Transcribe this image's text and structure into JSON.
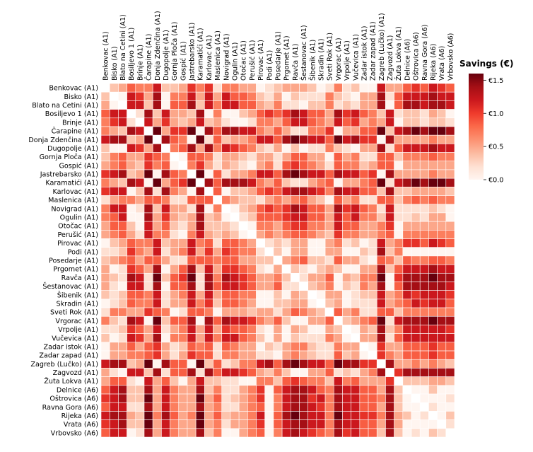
{
  "chart_data": {
    "type": "heatmap",
    "title": "",
    "colorbar_label": "Savings (€)",
    "colorbar_ticks": [
      {
        "value": 1.5,
        "label": "€1.5"
      },
      {
        "value": 1.0,
        "label": "€1.0"
      },
      {
        "value": 0.5,
        "label": "€0.5"
      },
      {
        "value": 0.0,
        "label": "€0.0"
      }
    ],
    "vmin": 0,
    "vmax": 1.6,
    "colormap": "Reds",
    "symmetric": true,
    "diagonal": "blank",
    "labels": [
      "Benkovac (A1)",
      "Bisko (A1)",
      "Blato na Cetini (A1)",
      "Bosiljevo 1 (A1)",
      "Brinje (A1)",
      "Čarapine (A1)",
      "Donja Zdenčina (A1)",
      "Dugopolje (A1)",
      "Gornja Ploča (A1)",
      "Gospić (A1)",
      "Jastrebarsko (A1)",
      "Karamatići (A1)",
      "Karlovac (A1)",
      "Maslenica (A1)",
      "Novigrad (A1)",
      "Ogulin (A1)",
      "Otočac (A1)",
      "Perušić (A1)",
      "Pirovac (A1)",
      "Podi (A1)",
      "Posedarje (A1)",
      "Prgomet (A1)",
      "Ravča (A1)",
      "Šestanovac (A1)",
      "Šibenik (A1)",
      "Skradin (A1)",
      "Sveti Rok (A1)",
      "Vrgorac (A1)",
      "Vrpolje (A1)",
      "Vučevica (A1)",
      "Zadar istok (A1)",
      "Zadar zapad (A1)",
      "Zagreb (Lučko) (A1)",
      "Zagvozd (A1)",
      "Žuta Lokva (A1)",
      "Delnice (A6)",
      "Oštrovica (A6)",
      "Ravna Gora (A6)",
      "Rijeka (A6)",
      "Vrata (A6)",
      "Vrbovsko (A6)"
    ],
    "upper_triangle": [
      [
        0.35,
        0.5,
        0.85,
        0.7,
        0.7,
        1.2,
        0.35,
        0.35,
        0.5,
        1.05,
        0.7,
        1.05,
        0.2,
        0.7,
        0.7,
        0.5,
        0.5,
        0,
        0.2,
        0.35,
        0.5,
        0.5,
        0.5,
        0.35,
        0,
        0.2,
        0.7,
        0.2,
        0.35,
        0,
        0,
        1.2,
        0.5,
        0.5,
        0.85,
        1.05,
        0.85,
        1.2,
        1.05,
        0.85
      ],
      [
        0,
        1.2,
        1.05,
        0.5,
        1.4,
        0,
        0.7,
        0.7,
        1.2,
        0.5,
        1.2,
        0.5,
        1.2,
        0.85,
        0.85,
        0.7,
        0.35,
        0.2,
        0.5,
        0,
        0.35,
        0.2,
        0.2,
        0.2,
        0.7,
        0.35,
        0.2,
        0,
        0.5,
        0.5,
        1.4,
        0.2,
        0.85,
        1.2,
        1.2,
        1.2,
        1.4,
        1.2,
        1.2
      ],
      [
        1.2,
        1.2,
        0.35,
        1.4,
        0,
        0.85,
        0.85,
        1.4,
        0.35,
        1.2,
        0.7,
        1.2,
        1.2,
        0.85,
        0.85,
        0.5,
        0.35,
        0.7,
        0.2,
        0.2,
        0,
        0.35,
        0.35,
        0.7,
        0.2,
        0.35,
        0.2,
        0.5,
        0.5,
        1.4,
        0,
        0.85,
        1.4,
        1.4,
        1.2,
        1.4,
        1.4,
        1.2
      ],
      [
        0.2,
        1.4,
        0.35,
        1.2,
        0.5,
        0.5,
        0.35,
        1.4,
        0,
        0.7,
        0,
        0,
        0.35,
        0.5,
        0.85,
        1.05,
        0.85,
        1.05,
        1.4,
        1.2,
        0.85,
        0.85,
        0.5,
        1.4,
        1.05,
        1.2,
        0.85,
        0.7,
        0.35,
        1.2,
        0.2,
        0.35,
        0.35,
        0.2,
        0.5,
        0.35,
        0
      ],
      [
        1.2,
        0.5,
        1.05,
        0.5,
        0.35,
        0.5,
        1.2,
        0.35,
        0.5,
        0.2,
        0,
        0,
        0.2,
        0.7,
        0.7,
        0.5,
        0.85,
        1.2,
        1.2,
        0.85,
        0.7,
        0.5,
        1.2,
        0.85,
        1.05,
        0.5,
        0.7,
        0.5,
        1.2,
        0,
        0.35,
        0.35,
        0.2,
        0.35,
        0.35,
        0.2
      ],
      [
        1.6,
        0.5,
        1.05,
        1.05,
        1.6,
        0,
        1.4,
        0.85,
        1.4,
        1.4,
        1.2,
        1.2,
        0.7,
        0.5,
        0.85,
        0.5,
        0.2,
        0.2,
        0.7,
        0.7,
        1.05,
        0,
        0.5,
        0.5,
        0.85,
        0.85,
        1.6,
        0.35,
        1.2,
        1.4,
        1.6,
        1.4,
        1.6,
        1.6,
        1.4
      ],
      [
        1.4,
        0.85,
        0.7,
        0,
        1.6,
        0.2,
        0.85,
        0.35,
        0.5,
        0.5,
        0.7,
        1.2,
        1.2,
        0.85,
        1.4,
        1.6,
        1.4,
        1.2,
        1.2,
        0.85,
        1.6,
        1.2,
        1.4,
        1.05,
        1.05,
        0,
        1.4,
        0.5,
        0.5,
        0.5,
        0.5,
        0.7,
        0.5,
        0.5
      ],
      [
        0.7,
        0.85,
        1.4,
        0.5,
        1.4,
        0.7,
        1.2,
        1.05,
        0.85,
        0.7,
        0.35,
        0.2,
        0.5,
        0,
        0.35,
        0,
        0.2,
        0.2,
        0.7,
        0.35,
        0.2,
        0,
        0.5,
        0.5,
        1.4,
        0.2,
        0.85,
        1.2,
        1.2,
        1.2,
        1.4,
        1.2,
        1.2
      ],
      [
        0,
        0.85,
        0.85,
        0.7,
        0.2,
        0.5,
        0.5,
        0.35,
        0.2,
        0.5,
        0.5,
        0.2,
        0.5,
        0.85,
        0.85,
        0.5,
        0.5,
        0,
        0.85,
        0.5,
        0.7,
        0.2,
        0.2,
        0.85,
        0.85,
        0.35,
        0.7,
        0.7,
        0.7,
        0.85,
        0.7,
        0.7
      ],
      [
        0.7,
        1.05,
        0.5,
        0.2,
        0.5,
        0.35,
        0.2,
        0,
        0.5,
        0.7,
        0.2,
        0.85,
        1.05,
        0.85,
        0.7,
        0.5,
        0.2,
        0.85,
        0.7,
        0.7,
        0.35,
        0.5,
        0.85,
        0.85,
        0,
        0.5,
        0.5,
        0.5,
        0.5,
        0.5,
        0.5
      ],
      [
        1.6,
        0,
        0.85,
        0.2,
        0.5,
        0.5,
        0.7,
        1.2,
        1.2,
        0.85,
        1.4,
        1.6,
        1.4,
        1.2,
        1.2,
        0.85,
        1.4,
        1.2,
        1.2,
        0.85,
        1.05,
        0,
        1.4,
        0.5,
        0.5,
        0.5,
        0.5,
        0.7,
        0.5,
        0.5
      ],
      [
        1.4,
        0.85,
        1.4,
        1.4,
        1.4,
        1.2,
        0.7,
        0.5,
        0.85,
        0.35,
        0.2,
        0.2,
        0.5,
        0.7,
        0.85,
        0,
        0.5,
        0.5,
        0.7,
        0.85,
        1.6,
        0.2,
        1.2,
        1.4,
        1.6,
        1.4,
        1.6,
        1.6,
        1.4
      ],
      [
        0.85,
        0,
        0.35,
        0.35,
        0.5,
        0.85,
        1.05,
        0.85,
        1.2,
        1.4,
        1.4,
        1.2,
        1.05,
        0.7,
        1.4,
        1.2,
        1.2,
        0.85,
        0.85,
        0.35,
        1.4,
        0.35,
        0.35,
        0.5,
        0.5,
        0.5,
        0.5,
        0.35
      ],
      [
        0.7,
        0.5,
        0.35,
        0.35,
        0.2,
        0.5,
        0.7,
        0.5,
        0.7,
        0.85,
        0.5,
        0.35,
        0,
        0.85,
        0.5,
        0.7,
        0.2,
        0.2,
        0.85,
        0.85,
        0.35,
        0.7,
        0.85,
        0.7,
        0.85,
        0.7,
        0.7
      ],
      [
        0,
        0.35,
        0.5,
        0.85,
        1.05,
        0.85,
        1.05,
        1.4,
        1.2,
        0.85,
        0.85,
        0.5,
        1.4,
        1.05,
        1.2,
        0.85,
        0.7,
        0.2,
        1.2,
        0.2,
        0.2,
        0.2,
        0.2,
        0.35,
        0.2,
        0
      ],
      [
        0.2,
        0.35,
        0.85,
        0.85,
        0.85,
        1.05,
        1.2,
        1.2,
        0.85,
        0.85,
        0.5,
        1.2,
        0.85,
        1.2,
        0.7,
        0.7,
        0.35,
        1.2,
        0.2,
        0.2,
        0.35,
        0.2,
        0.5,
        0.5,
        0
      ],
      [
        0,
        0.7,
        0.7,
        0.5,
        0.85,
        1.05,
        1.05,
        0.7,
        0.7,
        0.5,
        1.2,
        0.85,
        0.85,
        0.5,
        0.5,
        0.7,
        1.05,
        0,
        0.5,
        0.5,
        0.5,
        0.5,
        0.5,
        0.5
      ],
      [
        0.5,
        0.7,
        0.5,
        0.7,
        0.85,
        0.85,
        0.7,
        0.5,
        0.35,
        1.05,
        0.7,
        0.7,
        0.5,
        0.5,
        0.7,
        0.85,
        0,
        0.7,
        0.7,
        0.7,
        0.7,
        0.7,
        0.7
      ],
      [
        0.2,
        0.35,
        0.2,
        0.5,
        0.5,
        0,
        0,
        0.5,
        0.7,
        0.2,
        0.35,
        0,
        0.2,
        1.2,
        0.5,
        0.7,
        1.05,
        1.05,
        0.85,
        1.2,
        1.05,
        0.85
      ],
      [
        0.35,
        0,
        0.5,
        0.5,
        0,
        0,
        0.5,
        0.5,
        0,
        0,
        0.35,
        0.2,
        1.4,
        0.35,
        0.7,
        0,
        0,
        0,
        0,
        0,
        0
      ],
      [
        0.5,
        0.7,
        0.85,
        0.35,
        0.35,
        0.2,
        0.85,
        0.5,
        0.5,
        0.2,
        0,
        0.85,
        0.7,
        0.35,
        0.85,
        0.7,
        0.7,
        0.85,
        0.85,
        0.7
      ],
      [
        0.35,
        0.2,
        0,
        0.35,
        0.5,
        0.35,
        0,
        0,
        0.5,
        0.5,
        1.4,
        0.35,
        0.85,
        1.2,
        1.2,
        1.2,
        1.4,
        1.2,
        1.2
      ],
      [
        0.2,
        0.5,
        0.5,
        0.85,
        0,
        0.5,
        0.35,
        0.7,
        0.7,
        1.6,
        0,
        1.05,
        1.4,
        1.4,
        1.4,
        1.6,
        1.4,
        1.4
      ],
      [
        0.35,
        0.5,
        0.7,
        0,
        0.35,
        0.2,
        0.7,
        0.5,
        1.4,
        0,
        0.85,
        1.4,
        1.4,
        1.4,
        1.4,
        1.4,
        1.2
      ],
      [
        0,
        0.5,
        0.5,
        0,
        0.2,
        0.35,
        0.35,
        1.2,
        0.5,
        0.7,
        1.2,
        1.05,
        1.2,
        1.2,
        1.2,
        1.05
      ],
      [
        0.35,
        0.5,
        0,
        0.2,
        0.2,
        0.2,
        1.2,
        0.5,
        0.7,
        0.85,
        1.2,
        1.05,
        1.2,
        1.2,
        0.85
      ],
      [
        0.85,
        0.5,
        0.7,
        0.2,
        0.2,
        0.85,
        0.85,
        0.35,
        0.7,
        0.7,
        0.7,
        0.7,
        0.7,
        0.7
      ],
      [
        0.35,
        0.5,
        0.7,
        0.85,
        1.6,
        0.2,
        1.2,
        1.4,
        1.4,
        1.4,
        1.6,
        1.4,
        1.4
      ],
      [
        0,
        0.5,
        0.35,
        1.4,
        0.35,
        0.7,
        1.2,
        1.2,
        1.2,
        1.2,
        1.2,
        1.05
      ],
      [
        0.5,
        0.5,
        1.4,
        0.2,
        0.85,
        1.2,
        1.2,
        1.2,
        1.2,
        1.2,
        1.2
      ],
      [
        0,
        1.05,
        0.5,
        0.5,
        0.85,
        0.85,
        0.85,
        1.05,
        0.85,
        0.85
      ],
      [
        1.05,
        0.7,
        0.5,
        0.85,
        0.85,
        0.85,
        1.05,
        0.85,
        0.85
      ],
      [
        1.4,
        0.5,
        0.5,
        0.7,
        0.5,
        0.7,
        0.5,
        0.35
      ],
      [
        1.05,
        1.4,
        1.4,
        1.4,
        1.4,
        1.4,
        1.4
      ],
      [
        0.35,
        0.35,
        0.35,
        0.5,
        0.5,
        0.35
      ],
      [
        0,
        0,
        0.35,
        0,
        0
      ],
      [
        0,
        0,
        0,
        0.2
      ],
      [
        0.2,
        0,
        0
      ],
      [
        0,
        0.35
      ],
      [
        0.2
      ],
      []
    ]
  }
}
